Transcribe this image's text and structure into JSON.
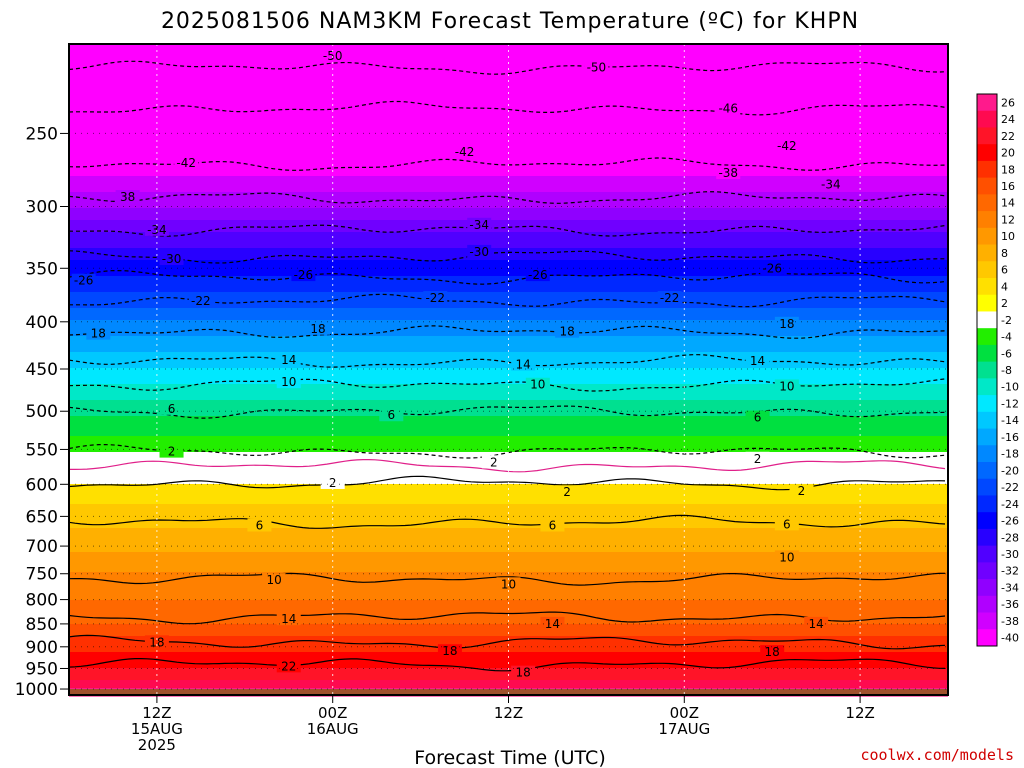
{
  "chart_data": {
    "type": "heatmap",
    "title": "2025081506 NAM3KM Forecast Temperature (ºC) for KHPN",
    "xlabel": "Forecast Time (UTC)",
    "ylabel": "",
    "y_scale": "log",
    "y_reversed": true,
    "ylim": [
      1015,
      200
    ],
    "y_ticks": [
      1000,
      950,
      900,
      850,
      800,
      750,
      700,
      650,
      600,
      550,
      500,
      450,
      400,
      350,
      300,
      250
    ],
    "xlim": [
      "2025-08-15T06Z",
      "2025-08-17T18Z"
    ],
    "x_ticks": [
      {
        "time": "2025-08-15T12Z",
        "lines": [
          "12Z",
          "15AUG",
          "2025"
        ]
      },
      {
        "time": "2025-08-16T00Z",
        "lines": [
          "00Z",
          "16AUG"
        ]
      },
      {
        "time": "2025-08-16T12Z",
        "lines": [
          "12Z"
        ]
      },
      {
        "time": "2025-08-17T00Z",
        "lines": [
          "00Z",
          "17AUG"
        ]
      },
      {
        "time": "2025-08-17T12Z",
        "lines": [
          "12Z"
        ]
      }
    ],
    "grid": true,
    "colorbar": {
      "position": "right",
      "levels": [
        {
          "label": "26",
          "color": "#ff1a8c"
        },
        {
          "label": "24",
          "color": "#ff0a50"
        },
        {
          "label": "22",
          "color": "#ff1428"
        },
        {
          "label": "20",
          "color": "#ff0000"
        },
        {
          "label": "18",
          "color": "#ff3000"
        },
        {
          "label": "16",
          "color": "#ff5000"
        },
        {
          "label": "14",
          "color": "#ff6800"
        },
        {
          "label": "12",
          "color": "#ff8000"
        },
        {
          "label": "10",
          "color": "#ff9800"
        },
        {
          "label": "8",
          "color": "#ffb000"
        },
        {
          "label": "6",
          "color": "#ffc800"
        },
        {
          "label": "4",
          "color": "#ffe000"
        },
        {
          "label": "2",
          "color": "#ffff00"
        },
        {
          "label": "-2",
          "color": "#ffffff"
        },
        {
          "label": "-4",
          "color": "#22ee00"
        },
        {
          "label": "-6",
          "color": "#00e040"
        },
        {
          "label": "-8",
          "color": "#00e090"
        },
        {
          "label": "-10",
          "color": "#00e8c8"
        },
        {
          "label": "-12",
          "color": "#00e8ff"
        },
        {
          "label": "-14",
          "color": "#00c8ff"
        },
        {
          "label": "-16",
          "color": "#00a8ff"
        },
        {
          "label": "-18",
          "color": "#0088ff"
        },
        {
          "label": "-20",
          "color": "#0068ff"
        },
        {
          "label": "-22",
          "color": "#0048ff"
        },
        {
          "label": "-24",
          "color": "#0028ff"
        },
        {
          "label": "-26",
          "color": "#0000ff"
        },
        {
          "label": "-28",
          "color": "#2800ff"
        },
        {
          "label": "-30",
          "color": "#5000ff"
        },
        {
          "label": "-32",
          "color": "#7000ff"
        },
        {
          "label": "-34",
          "color": "#9000ff"
        },
        {
          "label": "-36",
          "color": "#b000ff"
        },
        {
          "label": "-38",
          "color": "#d000ff"
        },
        {
          "label": "-40",
          "color": "#ff00ff"
        }
      ]
    },
    "profile": [
      {
        "p": 1000,
        "t": 24
      },
      {
        "p": 975,
        "t": 22
      },
      {
        "p": 950,
        "t": 20
      },
      {
        "p": 925,
        "t": 19
      },
      {
        "p": 900,
        "t": 17.5
      },
      {
        "p": 875,
        "t": 16
      },
      {
        "p": 850,
        "t": 14
      },
      {
        "p": 800,
        "t": 12
      },
      {
        "p": 750,
        "t": 10
      },
      {
        "p": 700,
        "t": 7.5
      },
      {
        "p": 650,
        "t": 5
      },
      {
        "p": 600,
        "t": 2
      },
      {
        "p": 575,
        "t": 0
      },
      {
        "p": 550,
        "t": -2.5
      },
      {
        "p": 500,
        "t": -6.5
      },
      {
        "p": 450,
        "t": -12
      },
      {
        "p": 400,
        "t": -18
      },
      {
        "p": 350,
        "t": -25
      },
      {
        "p": 300,
        "t": -34
      },
      {
        "p": 250,
        "t": -44
      },
      {
        "p": 210,
        "t": -51
      },
      {
        "p": 200,
        "t": -53
      }
    ],
    "contours": [
      {
        "value": 22,
        "p": 940,
        "labels": [
          {
            "time": "2025-08-15T21Z",
            "p": 945,
            "text": "22"
          }
        ]
      },
      {
        "value": 18,
        "p": 890,
        "labels": [
          {
            "time": "2025-08-15T12Z",
            "p": 890,
            "text": "18"
          },
          {
            "time": "2025-08-16T08Z",
            "p": 910,
            "text": "18"
          },
          {
            "time": "2025-08-16T13Z",
            "p": 960,
            "text": "18"
          },
          {
            "time": "2025-08-17T06Z",
            "p": 912,
            "text": "18"
          }
        ]
      },
      {
        "value": 14,
        "p": 835,
        "labels": [
          {
            "time": "2025-08-15T21Z",
            "p": 840,
            "text": "14"
          },
          {
            "time": "2025-08-16T15Z",
            "p": 850,
            "text": "14"
          },
          {
            "time": "2025-08-17T09Z",
            "p": 850,
            "text": "14"
          }
        ]
      },
      {
        "value": 10,
        "p": 760,
        "labels": [
          {
            "time": "2025-08-15T20Z",
            "p": 762,
            "text": "10"
          },
          {
            "time": "2025-08-16T12Z",
            "p": 770,
            "text": "10"
          },
          {
            "time": "2025-08-17T07Z",
            "p": 720,
            "text": "10"
          }
        ]
      },
      {
        "value": 6,
        "p": 660,
        "labels": [
          {
            "time": "2025-08-15T19Z",
            "p": 665,
            "text": "6"
          },
          {
            "time": "2025-08-16T15Z",
            "p": 665,
            "text": "6"
          },
          {
            "time": "2025-08-17T07Z",
            "p": 663,
            "text": "6"
          }
        ]
      },
      {
        "value": 2,
        "p": 598,
        "labels": [
          {
            "time": "2025-08-16T00Z",
            "p": 598,
            "text": "2"
          },
          {
            "time": "2025-08-16T16Z",
            "p": 612,
            "text": "2"
          },
          {
            "time": "2025-08-17T08Z",
            "p": 610,
            "text": "2"
          }
        ]
      },
      {
        "value": 0,
        "p": 573,
        "labels": []
      },
      {
        "value": -2,
        "p": 553,
        "labels": [
          {
            "time": "2025-08-15T13Z",
            "p": 553,
            "text": "2"
          },
          {
            "time": "2025-08-16T11Z",
            "p": 568,
            "text": "2"
          },
          {
            "time": "2025-08-17T05Z",
            "p": 563,
            "text": "2"
          }
        ]
      },
      {
        "value": -6,
        "p": 500,
        "labels": [
          {
            "time": "2025-08-15T13Z",
            "p": 497,
            "text": "6"
          },
          {
            "time": "2025-08-16T04Z",
            "p": 505,
            "text": "6"
          },
          {
            "time": "2025-08-17T05Z",
            "p": 508,
            "text": "6"
          }
        ]
      },
      {
        "value": -10,
        "p": 468,
        "labels": [
          {
            "time": "2025-08-15T21Z",
            "p": 465,
            "text": "10"
          },
          {
            "time": "2025-08-16T14Z",
            "p": 468,
            "text": "10"
          },
          {
            "time": "2025-08-17T07Z",
            "p": 470,
            "text": "10"
          }
        ]
      },
      {
        "value": -14,
        "p": 442,
        "labels": [
          {
            "time": "2025-08-15T21Z",
            "p": 440,
            "text": "14"
          },
          {
            "time": "2025-08-16T13Z",
            "p": 445,
            "text": "14"
          },
          {
            "time": "2025-08-17T05Z",
            "p": 441,
            "text": "14"
          }
        ]
      },
      {
        "value": -18,
        "p": 410,
        "labels": [
          {
            "time": "2025-08-15T08Z",
            "p": 412,
            "text": "18"
          },
          {
            "time": "2025-08-15T23Z",
            "p": 407,
            "text": "18"
          },
          {
            "time": "2025-08-16T16Z",
            "p": 410,
            "text": "18"
          },
          {
            "time": "2025-08-17T07Z",
            "p": 402,
            "text": "18"
          }
        ]
      },
      {
        "value": -22,
        "p": 380,
        "labels": [
          {
            "time": "2025-08-15T15Z",
            "p": 380,
            "text": "-22"
          },
          {
            "time": "2025-08-16T07Z",
            "p": 377,
            "text": "-22"
          },
          {
            "time": "2025-08-16T23Z",
            "p": 377,
            "text": "-22"
          }
        ]
      },
      {
        "value": -26,
        "p": 358,
        "labels": [
          {
            "time": "2025-08-15T07Z",
            "p": 361,
            "text": "-26"
          },
          {
            "time": "2025-08-15T22Z",
            "p": 356,
            "text": "-26"
          },
          {
            "time": "2025-08-16T14Z",
            "p": 356,
            "text": "-26"
          },
          {
            "time": "2025-08-17T06Z",
            "p": 350,
            "text": "-26"
          }
        ]
      },
      {
        "value": -30,
        "p": 340,
        "labels": [
          {
            "time": "2025-08-15T13Z",
            "p": 342,
            "text": "-30"
          },
          {
            "time": "2025-08-16T10Z",
            "p": 336,
            "text": "-30"
          }
        ]
      },
      {
        "value": -34,
        "p": 318,
        "labels": [
          {
            "time": "2025-08-15T12Z",
            "p": 318,
            "text": "-34"
          },
          {
            "time": "2025-08-16T10Z",
            "p": 314,
            "text": "-34"
          },
          {
            "time": "2025-08-17T10Z",
            "p": 284,
            "text": "-34"
          }
        ]
      },
      {
        "value": -38,
        "p": 294,
        "labels": [
          {
            "time": "2025-08-15T10Z",
            "p": 293,
            "text": "38"
          },
          {
            "time": "2025-08-17T03Z",
            "p": 276,
            "text": "-38"
          }
        ]
      },
      {
        "value": -42,
        "p": 270,
        "labels": [
          {
            "time": "2025-08-15T14Z",
            "p": 269,
            "text": "-42"
          },
          {
            "time": "2025-08-16T09Z",
            "p": 262,
            "text": "-42"
          },
          {
            "time": "2025-08-17T07Z",
            "p": 258,
            "text": "-42"
          }
        ]
      },
      {
        "value": -46,
        "p": 235,
        "labels": [
          {
            "time": "2025-08-17T03Z",
            "p": 235,
            "text": "-46"
          }
        ]
      },
      {
        "value": -50,
        "p": 212,
        "labels": [
          {
            "time": "2025-08-16T00Z",
            "p": 206,
            "text": "-50"
          },
          {
            "time": "2025-08-16T18Z",
            "p": 212,
            "text": "-50"
          }
        ]
      }
    ]
  },
  "ground": {
    "color": "#a0522d"
  },
  "credit": "coolwx.com/models"
}
